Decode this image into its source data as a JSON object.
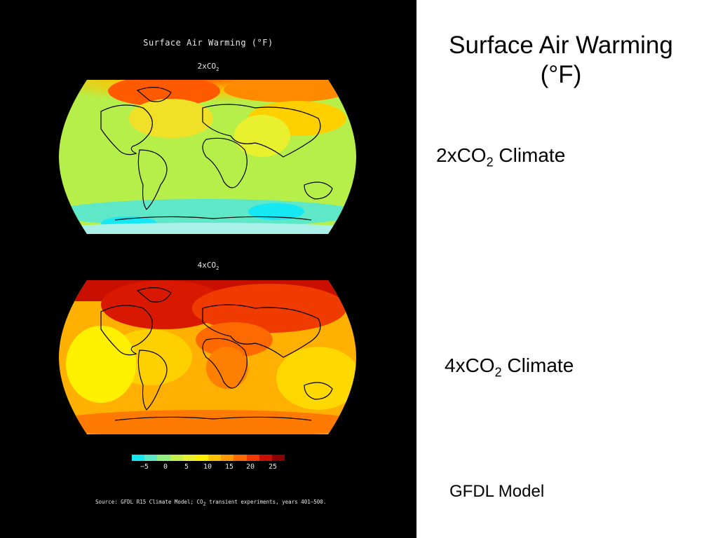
{
  "figure": {
    "title": "Surface Air Warming (°F)",
    "panel_top": {
      "label_main": "2xCO",
      "label_sub": "2"
    },
    "panel_bottom": {
      "label_main": "4xCO",
      "label_sub": "2"
    },
    "colorbar": {
      "ticks": [
        "−5",
        "0",
        "5",
        "10",
        "15",
        "20",
        "25"
      ],
      "colors": [
        "#15e8f2",
        "#5ee8c8",
        "#92ef82",
        "#c3f04a",
        "#e9f02e",
        "#fff000",
        "#ffc200",
        "#ff9a00",
        "#ff6a00",
        "#ef3a00",
        "#c90f00",
        "#8a0000"
      ]
    },
    "source": {
      "pre": "Source:  GFDL R15 Climate Model; CO",
      "sub": "2",
      "post": " transient experiments, years 401–500."
    }
  },
  "slide": {
    "title": "Surface Air Warming (°F)",
    "label_2x": {
      "main": "2xCO",
      "sub": "2",
      "rest": " Climate"
    },
    "label_4x": {
      "main": "4xCO",
      "sub": "2",
      "rest": " Climate"
    },
    "model": "GFDL Model"
  }
}
